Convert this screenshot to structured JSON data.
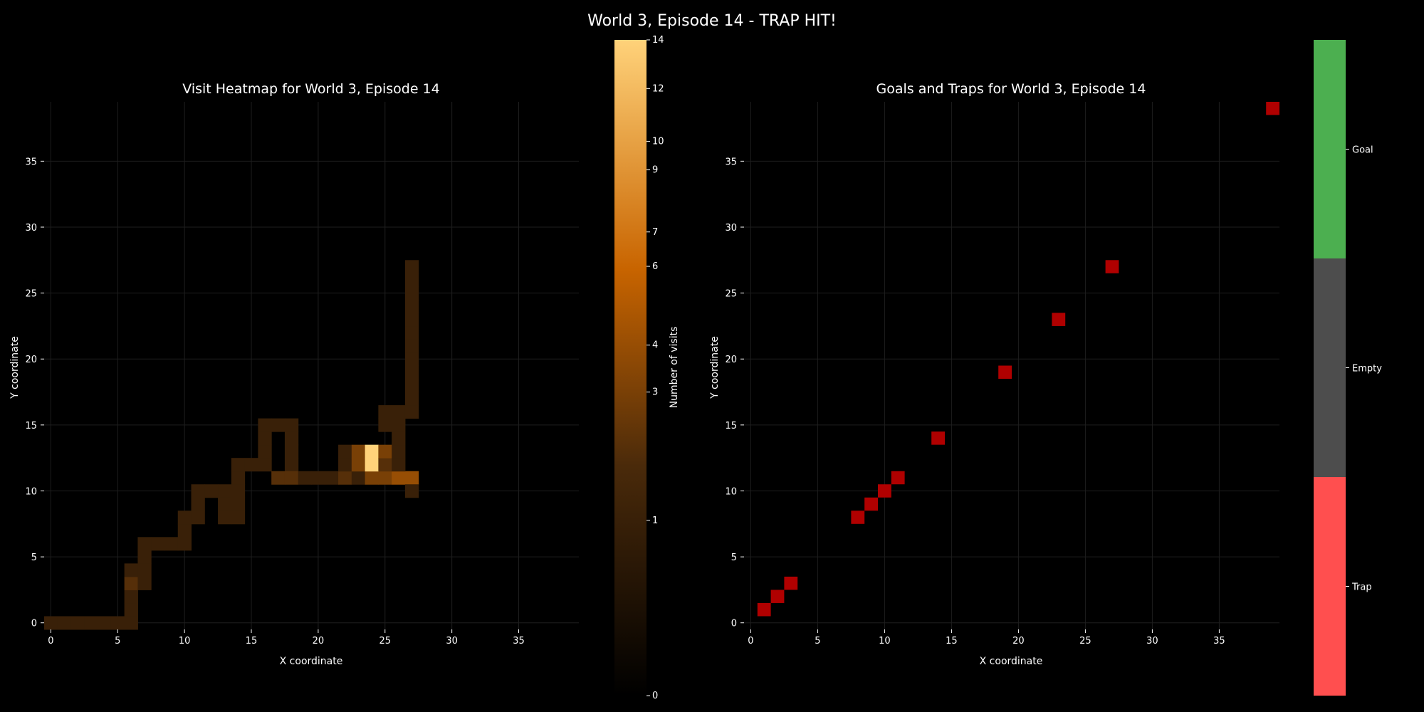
{
  "figure_title": "World 3, Episode 14 - TRAP HIT!",
  "colors": {
    "background": "#000000",
    "grid": "#1e1e1e",
    "visit_low": "#000000",
    "visit_high": "#ffd27a",
    "trap_marker": "#b00000",
    "goal": "#4caf50",
    "empty": "#4d4d4d",
    "trap": "#ff4f4f"
  },
  "chart_data": [
    {
      "type": "heatmap",
      "title": "Visit Heatmap for World 3, Episode 14",
      "xlabel": "X coordinate",
      "ylabel": "Y coordinate",
      "xlim": [
        -0.5,
        39.5
      ],
      "ylim": [
        -0.5,
        39.5
      ],
      "xticks": [
        0,
        5,
        10,
        15,
        20,
        25,
        30,
        35
      ],
      "yticks": [
        0,
        5,
        10,
        15,
        20,
        25,
        30,
        35
      ],
      "grid": true,
      "colorbar": {
        "label": "Number of visits",
        "ticks": [
          0,
          1,
          3,
          4,
          6,
          7,
          9,
          10,
          12,
          14
        ],
        "max": 14
      },
      "cells": [
        {
          "x": 0,
          "y": 0,
          "v": 1
        },
        {
          "x": 1,
          "y": 0,
          "v": 1
        },
        {
          "x": 2,
          "y": 0,
          "v": 1
        },
        {
          "x": 3,
          "y": 0,
          "v": 1
        },
        {
          "x": 4,
          "y": 0,
          "v": 1
        },
        {
          "x": 5,
          "y": 0,
          "v": 1
        },
        {
          "x": 6,
          "y": 0,
          "v": 1
        },
        {
          "x": 6,
          "y": 1,
          "v": 1
        },
        {
          "x": 6,
          "y": 2,
          "v": 1
        },
        {
          "x": 6,
          "y": 3,
          "v": 2
        },
        {
          "x": 6,
          "y": 4,
          "v": 1
        },
        {
          "x": 7,
          "y": 3,
          "v": 1
        },
        {
          "x": 7,
          "y": 4,
          "v": 1
        },
        {
          "x": 7,
          "y": 5,
          "v": 1
        },
        {
          "x": 7,
          "y": 6,
          "v": 1
        },
        {
          "x": 8,
          "y": 6,
          "v": 1
        },
        {
          "x": 9,
          "y": 6,
          "v": 1
        },
        {
          "x": 10,
          "y": 6,
          "v": 1
        },
        {
          "x": 10,
          "y": 7,
          "v": 1
        },
        {
          "x": 10,
          "y": 8,
          "v": 1
        },
        {
          "x": 11,
          "y": 8,
          "v": 1
        },
        {
          "x": 11,
          "y": 9,
          "v": 1
        },
        {
          "x": 11,
          "y": 10,
          "v": 1
        },
        {
          "x": 12,
          "y": 10,
          "v": 1
        },
        {
          "x": 13,
          "y": 10,
          "v": 1
        },
        {
          "x": 13,
          "y": 8,
          "v": 1
        },
        {
          "x": 13,
          "y": 9,
          "v": 1
        },
        {
          "x": 14,
          "y": 8,
          "v": 1
        },
        {
          "x": 14,
          "y": 9,
          "v": 1
        },
        {
          "x": 14,
          "y": 10,
          "v": 1
        },
        {
          "x": 14,
          "y": 11,
          "v": 1
        },
        {
          "x": 14,
          "y": 12,
          "v": 1
        },
        {
          "x": 15,
          "y": 12,
          "v": 1
        },
        {
          "x": 16,
          "y": 12,
          "v": 1
        },
        {
          "x": 16,
          "y": 13,
          "v": 1
        },
        {
          "x": 16,
          "y": 14,
          "v": 1
        },
        {
          "x": 16,
          "y": 15,
          "v": 1
        },
        {
          "x": 17,
          "y": 15,
          "v": 1
        },
        {
          "x": 18,
          "y": 15,
          "v": 1
        },
        {
          "x": 18,
          "y": 14,
          "v": 1
        },
        {
          "x": 18,
          "y": 13,
          "v": 1
        },
        {
          "x": 18,
          "y": 12,
          "v": 1
        },
        {
          "x": 17,
          "y": 11,
          "v": 2
        },
        {
          "x": 18,
          "y": 11,
          "v": 2
        },
        {
          "x": 19,
          "y": 11,
          "v": 1
        },
        {
          "x": 20,
          "y": 11,
          "v": 1
        },
        {
          "x": 21,
          "y": 11,
          "v": 1
        },
        {
          "x": 22,
          "y": 11,
          "v": 2
        },
        {
          "x": 23,
          "y": 11,
          "v": 1
        },
        {
          "x": 24,
          "y": 11,
          "v": 3
        },
        {
          "x": 25,
          "y": 11,
          "v": 3
        },
        {
          "x": 26,
          "y": 11,
          "v": 4
        },
        {
          "x": 27,
          "y": 11,
          "v": 4
        },
        {
          "x": 22,
          "y": 12,
          "v": 1
        },
        {
          "x": 22,
          "y": 13,
          "v": 1
        },
        {
          "x": 23,
          "y": 12,
          "v": 3
        },
        {
          "x": 23,
          "y": 13,
          "v": 3
        },
        {
          "x": 24,
          "y": 12,
          "v": 14
        },
        {
          "x": 24,
          "y": 13,
          "v": 14
        },
        {
          "x": 25,
          "y": 12,
          "v": 2
        },
        {
          "x": 25,
          "y": 13,
          "v": 3
        },
        {
          "x": 26,
          "y": 12,
          "v": 1
        },
        {
          "x": 26,
          "y": 13,
          "v": 1
        },
        {
          "x": 26,
          "y": 14,
          "v": 1
        },
        {
          "x": 26,
          "y": 15,
          "v": 1
        },
        {
          "x": 26,
          "y": 16,
          "v": 1
        },
        {
          "x": 25,
          "y": 15,
          "v": 1
        },
        {
          "x": 25,
          "y": 16,
          "v": 1
        },
        {
          "x": 27,
          "y": 10,
          "v": 1
        },
        {
          "x": 27,
          "y": 16,
          "v": 1
        },
        {
          "x": 27,
          "y": 17,
          "v": 1
        },
        {
          "x": 27,
          "y": 18,
          "v": 1
        },
        {
          "x": 27,
          "y": 19,
          "v": 1
        },
        {
          "x": 27,
          "y": 20,
          "v": 1
        },
        {
          "x": 27,
          "y": 21,
          "v": 1
        },
        {
          "x": 27,
          "y": 22,
          "v": 1
        },
        {
          "x": 27,
          "y": 23,
          "v": 1
        },
        {
          "x": 27,
          "y": 24,
          "v": 1
        },
        {
          "x": 27,
          "y": 25,
          "v": 1
        },
        {
          "x": 27,
          "y": 26,
          "v": 1
        },
        {
          "x": 27,
          "y": 27,
          "v": 1
        }
      ]
    },
    {
      "type": "heatmap",
      "title": "Goals and Traps for World 3, Episode 14",
      "xlabel": "X coordinate",
      "ylabel": "Y coordinate",
      "xlim": [
        -0.5,
        39.5
      ],
      "ylim": [
        -0.5,
        39.5
      ],
      "xticks": [
        0,
        5,
        10,
        15,
        20,
        25,
        30,
        35
      ],
      "yticks": [
        0,
        5,
        10,
        15,
        20,
        25,
        30,
        35
      ],
      "grid": true,
      "colorbar": {
        "categories": [
          "Trap",
          "Empty",
          "Goal"
        ]
      },
      "traps": [
        {
          "x": 1,
          "y": 1
        },
        {
          "x": 2,
          "y": 2
        },
        {
          "x": 3,
          "y": 3
        },
        {
          "x": 8,
          "y": 8
        },
        {
          "x": 9,
          "y": 9
        },
        {
          "x": 10,
          "y": 10
        },
        {
          "x": 11,
          "y": 11
        },
        {
          "x": 14,
          "y": 14
        },
        {
          "x": 19,
          "y": 19
        },
        {
          "x": 23,
          "y": 23
        },
        {
          "x": 27,
          "y": 27
        },
        {
          "x": 39,
          "y": 39
        }
      ],
      "goals": []
    }
  ]
}
